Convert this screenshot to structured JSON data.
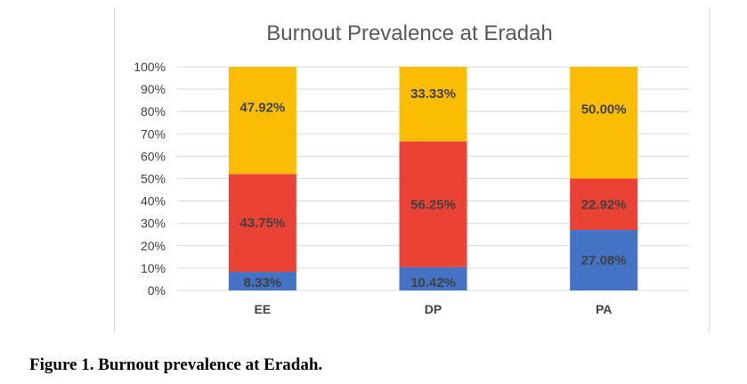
{
  "caption": "Figure 1. Burnout prevalence at Eradah.",
  "chart_data": {
    "type": "bar",
    "stacked": true,
    "percent_stacked": true,
    "title": "Burnout Prevalence at Eradah",
    "xlabel": "",
    "ylabel": "",
    "ylim": [
      0,
      100
    ],
    "y_ticks": [
      "0%",
      "10%",
      "20%",
      "30%",
      "40%",
      "50%",
      "60%",
      "70%",
      "80%",
      "90%",
      "100%"
    ],
    "grid": true,
    "legend": "none",
    "categories": [
      "EE",
      "DP",
      "PA"
    ],
    "series": [
      {
        "values": [
          8.33,
          10.42,
          27.08
        ],
        "labels": [
          "8.33%",
          "10.42%",
          "27.08%"
        ],
        "color": "#4472c4"
      },
      {
        "values": [
          43.75,
          56.25,
          22.92
        ],
        "labels": [
          "43.75%",
          "56.25%",
          "22.92%"
        ],
        "color": "#ea4335"
      },
      {
        "values": [
          47.92,
          33.33,
          50.0
        ],
        "labels": [
          "47.92%",
          "33.33%",
          "50.00%"
        ],
        "color": "#fbbc04"
      }
    ]
  }
}
